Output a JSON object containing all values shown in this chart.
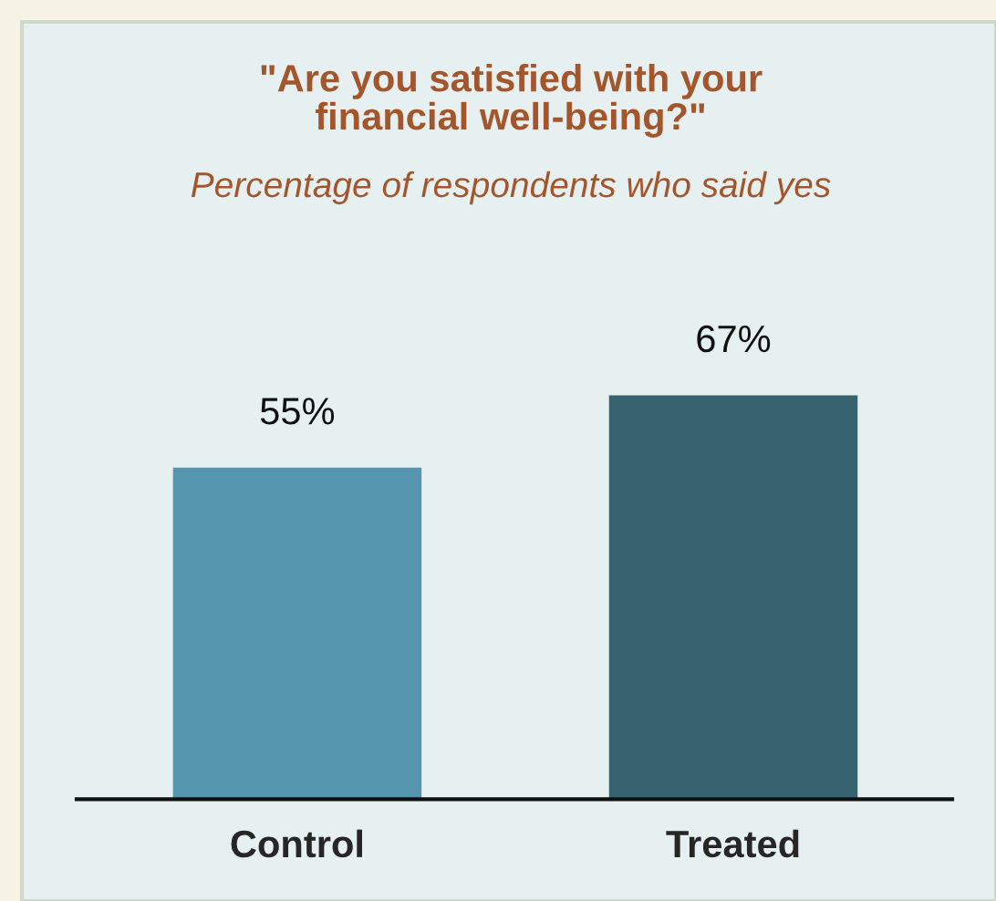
{
  "chart_data": {
    "type": "bar",
    "title": "\"Are you satisfied with your\nfinancial well-being?\"",
    "subtitle": "Percentage of respondents who said yes",
    "categories": [
      "Control",
      "Treated"
    ],
    "values": [
      55,
      67
    ],
    "colors": [
      "#5595ae",
      "#376371"
    ],
    "value_labels": [
      "55%",
      "67%"
    ]
  }
}
